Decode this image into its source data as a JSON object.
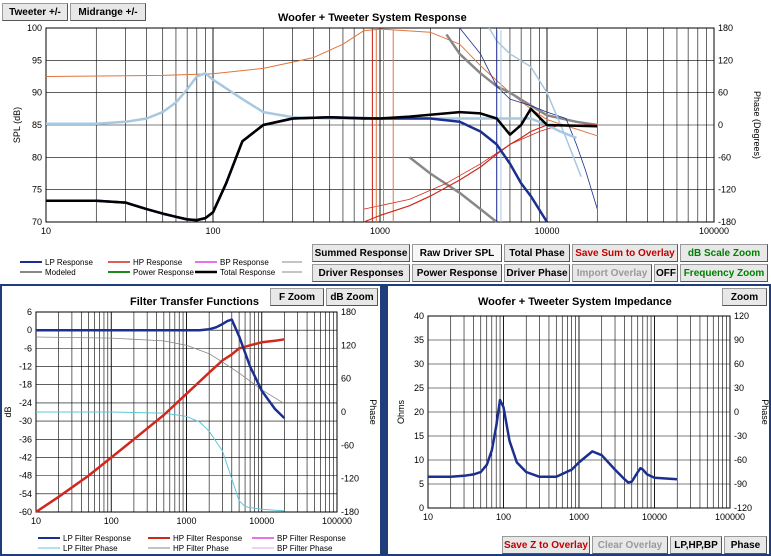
{
  "top": {
    "tweeter_btn": "Tweeter +/-",
    "midrange_btn": "Midrange  +/-",
    "buttons": {
      "summed": "Summed Response",
      "raw_spl": "Raw Driver SPL",
      "total_phase": "Total Phase",
      "save_sum": "Save Sum to Overlay",
      "db_scale_zoom": "dB Scale Zoom",
      "driver_responses": "Driver Responses",
      "power_response": "Power Response",
      "driver_phase": "Driver Phase",
      "import_overlay": "Import Overlay",
      "off": "OFF",
      "frequency_zoom": "Frequency Zoom"
    },
    "legend": {
      "lp": "LP Response",
      "hp": "HP Response",
      "bp": "BP Response",
      "modeled": "Modeled",
      "power": "Power Response",
      "total": "Total Response"
    }
  },
  "filter": {
    "f_zoom": "F Zoom",
    "db_zoom": "dB Zoom",
    "legend": {
      "lp_resp": "LP Filter Response",
      "hp_resp": "HP Filter Response",
      "bp_resp": "BP Filter Response",
      "lp_phase": "LP Filter Phase",
      "hp_phase": "HP Filter Phase",
      "bp_phase": "BP Filter Phase"
    }
  },
  "impedance": {
    "zoom": "Zoom",
    "save_z": "Save Z to Overlay",
    "clear_overlay": "Clear Overlay",
    "lphpbp": "LP,HP,BP",
    "phase": "Phase"
  },
  "colors": {
    "lp": "#1a2f8f",
    "hp": "#d0281c",
    "bp": "#e040e0",
    "modeled": "#888888",
    "power": "#1a8a1a",
    "total": "#000000",
    "raw_tweeter": "#a8c8e0",
    "phase_orange": "#e0763a"
  },
  "chart_data": [
    {
      "type": "line",
      "title": "Woofer + Tweeter    System Response",
      "ylabel": "SPL (dB)",
      "y2label": "Phase (Degrees)",
      "xscale": "log",
      "xlim": [
        10,
        100000
      ],
      "ylim": [
        70,
        100
      ],
      "y2lim": [
        -180,
        180
      ],
      "x_ticks": [
        "10",
        "100",
        "1000",
        "10000",
        "100000"
      ],
      "y_ticks": [
        "70",
        "75",
        "80",
        "85",
        "90",
        "95",
        "100"
      ],
      "y2_ticks": [
        "-180",
        "-120",
        "-60",
        "0",
        "60",
        "120",
        "180"
      ],
      "legend": "bottom-left",
      "series": [
        {
          "name": "LP Response",
          "color": "#1a2f8f",
          "x": [
            10,
            20,
            30,
            40,
            50,
            60,
            70,
            80,
            90,
            100,
            120,
            150,
            200,
            300,
            500,
            1000,
            2000,
            3000,
            4000,
            5000,
            6000,
            7000,
            8000,
            10000
          ],
          "y": [
            73.3,
            73.3,
            73,
            72,
            71.3,
            70.8,
            70.4,
            70.3,
            70.6,
            71.5,
            76,
            82.5,
            85,
            86,
            86.2,
            86,
            86,
            85.5,
            84,
            82,
            79,
            76,
            74,
            70
          ]
        },
        {
          "name": "HP Response",
          "color": "#d0281c",
          "x": [
            800,
            1000,
            1500,
            2000,
            3000,
            4000,
            5000,
            6000,
            7000,
            8000,
            10000,
            20000
          ],
          "y": [
            70,
            71,
            72.5,
            74,
            76.5,
            78.5,
            80.5,
            82,
            83,
            84,
            85,
            85
          ]
        },
        {
          "name": "Total Response",
          "color": "#000000",
          "x": [
            10,
            20,
            30,
            40,
            50,
            60,
            70,
            80,
            90,
            100,
            120,
            150,
            200,
            300,
            500,
            800,
            1000,
            1500,
            2000,
            3000,
            4000,
            5000,
            6000,
            7000,
            8000,
            10000,
            20000
          ],
          "y": [
            73.3,
            73.3,
            73,
            72,
            71.3,
            70.8,
            70.4,
            70.3,
            70.6,
            71.5,
            76,
            82.5,
            85,
            86,
            86.2,
            86,
            86,
            86.3,
            86.6,
            87,
            86.8,
            86,
            83.5,
            85,
            87.5,
            85,
            84.8
          ]
        },
        {
          "name": "",
          "color": "#a8c8e0",
          "x": [
            10,
            20,
            30,
            40,
            50,
            60,
            70,
            80,
            90,
            100,
            150,
            200,
            300,
            500,
            1000,
            2000,
            3000,
            4000,
            5000,
            6000,
            7000,
            8000,
            10000,
            12000,
            15000
          ],
          "y": [
            85.2,
            85.2,
            85.5,
            86,
            87,
            88.5,
            90.5,
            92.5,
            93,
            92,
            89,
            87,
            86.2,
            86,
            86,
            86,
            86,
            86,
            86,
            86,
            86,
            86,
            85,
            84,
            83
          ]
        }
      ]
    },
    {
      "type": "line",
      "title": "Filter Transfer Functions",
      "ylabel": "dB",
      "y2label": "Phase",
      "xscale": "log",
      "xlim": [
        10,
        100000
      ],
      "ylim": [
        -60,
        6
      ],
      "y2lim": [
        -180,
        180
      ],
      "x_ticks": [
        "10",
        "100",
        "1000",
        "10000",
        "100000"
      ],
      "y_ticks": [
        "6",
        "0",
        "-6",
        "-12",
        "-18",
        "-24",
        "-30",
        "-36",
        "-42",
        "-48",
        "-54",
        "-60"
      ],
      "y2_ticks": [
        "180",
        "120",
        "60",
        "0",
        "-60",
        "-120",
        "-180"
      ],
      "legend": "bottom-left",
      "series": [
        {
          "name": "LP Filter Response",
          "color": "#1a2f8f",
          "x": [
            10,
            100,
            500,
            1000,
            1500,
            2000,
            2500,
            3000,
            3500,
            4000,
            5000,
            7000,
            10000,
            15000,
            20000
          ],
          "y": [
            0,
            0,
            0,
            0,
            0,
            0.3,
            1,
            2,
            3,
            3.5,
            -2,
            -12,
            -20,
            -26,
            -29
          ]
        },
        {
          "name": "HP Filter Response",
          "color": "#d0281c",
          "x": [
            10,
            20,
            50,
            100,
            200,
            500,
            1000,
            2000,
            3000,
            4000,
            5000,
            7000,
            10000,
            15000,
            20000
          ],
          "y": [
            -60,
            -55,
            -48,
            -42,
            -36,
            -28,
            -21,
            -14,
            -10,
            -8,
            -6,
            -5,
            -4,
            -3.5,
            -3
          ]
        },
        {
          "name": "LP Filter Phase",
          "color": "#5ec8d8",
          "x": [
            10,
            100,
            500,
            1000,
            1500,
            2000,
            3000,
            4000,
            5000,
            6000,
            7000,
            10000,
            20000
          ],
          "y": [
            0,
            0,
            -2,
            -8,
            -18,
            -35,
            -70,
            -120,
            -160,
            -170,
            -172,
            -175,
            -178
          ]
        },
        {
          "name": "HP Filter Phase",
          "color": "#888888",
          "x": [
            10,
            100,
            500,
            1000,
            2000,
            3000,
            5000,
            10000,
            20000
          ],
          "y": [
            135,
            133,
            128,
            120,
            105,
            90,
            70,
            40,
            15
          ]
        }
      ]
    },
    {
      "type": "line",
      "title": "Woofer + Tweeter    System Impedance",
      "ylabel": "Ohms",
      "y2label": "Phase",
      "xscale": "log",
      "xlim": [
        10,
        100000
      ],
      "ylim": [
        0,
        40
      ],
      "y2lim": [
        -120,
        120
      ],
      "x_ticks": [
        "10",
        "100",
        "1000",
        "10000",
        "100000"
      ],
      "y_ticks": [
        "0",
        "5",
        "10",
        "15",
        "20",
        "25",
        "30",
        "35",
        "40"
      ],
      "y2_ticks": [
        "-120",
        "-90",
        "-60",
        "-30",
        "0",
        "30",
        "60",
        "90",
        "120"
      ],
      "series": [
        {
          "name": "",
          "color": "#1a2f8f",
          "x": [
            10,
            20,
            30,
            40,
            50,
            60,
            70,
            80,
            90,
            100,
            120,
            150,
            200,
            300,
            500,
            800,
            1000,
            1500,
            2000,
            3000,
            4000,
            4500,
            5000,
            6000,
            6500,
            7000,
            8000,
            10000,
            20000
          ],
          "y": [
            6.5,
            6.5,
            6.7,
            7,
            7.5,
            9,
            12,
            17,
            22.5,
            21,
            14,
            9.5,
            7.5,
            6.5,
            6.5,
            8,
            9.5,
            11.8,
            11,
            8,
            6,
            5.3,
            5.5,
            7.5,
            8.3,
            8,
            7,
            6.3,
            6
          ]
        }
      ]
    }
  ]
}
